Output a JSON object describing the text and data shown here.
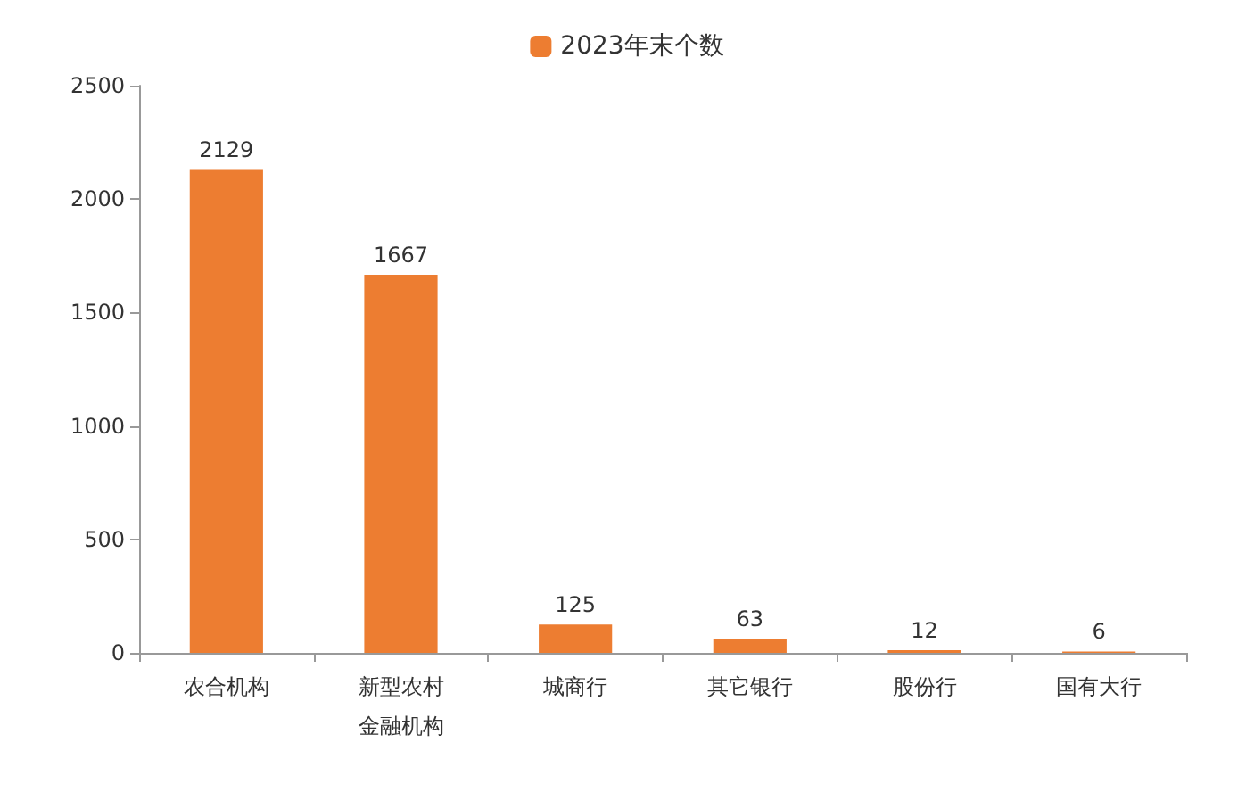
{
  "chart_data": {
    "type": "bar",
    "categories": [
      "农合机构",
      "新型农村金融机构",
      "城商行",
      "其它银行",
      "股份行",
      "国有大行"
    ],
    "series": [
      {
        "name": "2023年末个数",
        "color": "#ed7d31",
        "values": [
          2129,
          1667,
          125,
          63,
          12,
          6
        ]
      }
    ],
    "ylim": [
      0,
      2500
    ],
    "yticks": [
      0,
      500,
      1000,
      1500,
      2000,
      2500
    ],
    "grid": false,
    "legend": "top",
    "data_labels": true
  }
}
